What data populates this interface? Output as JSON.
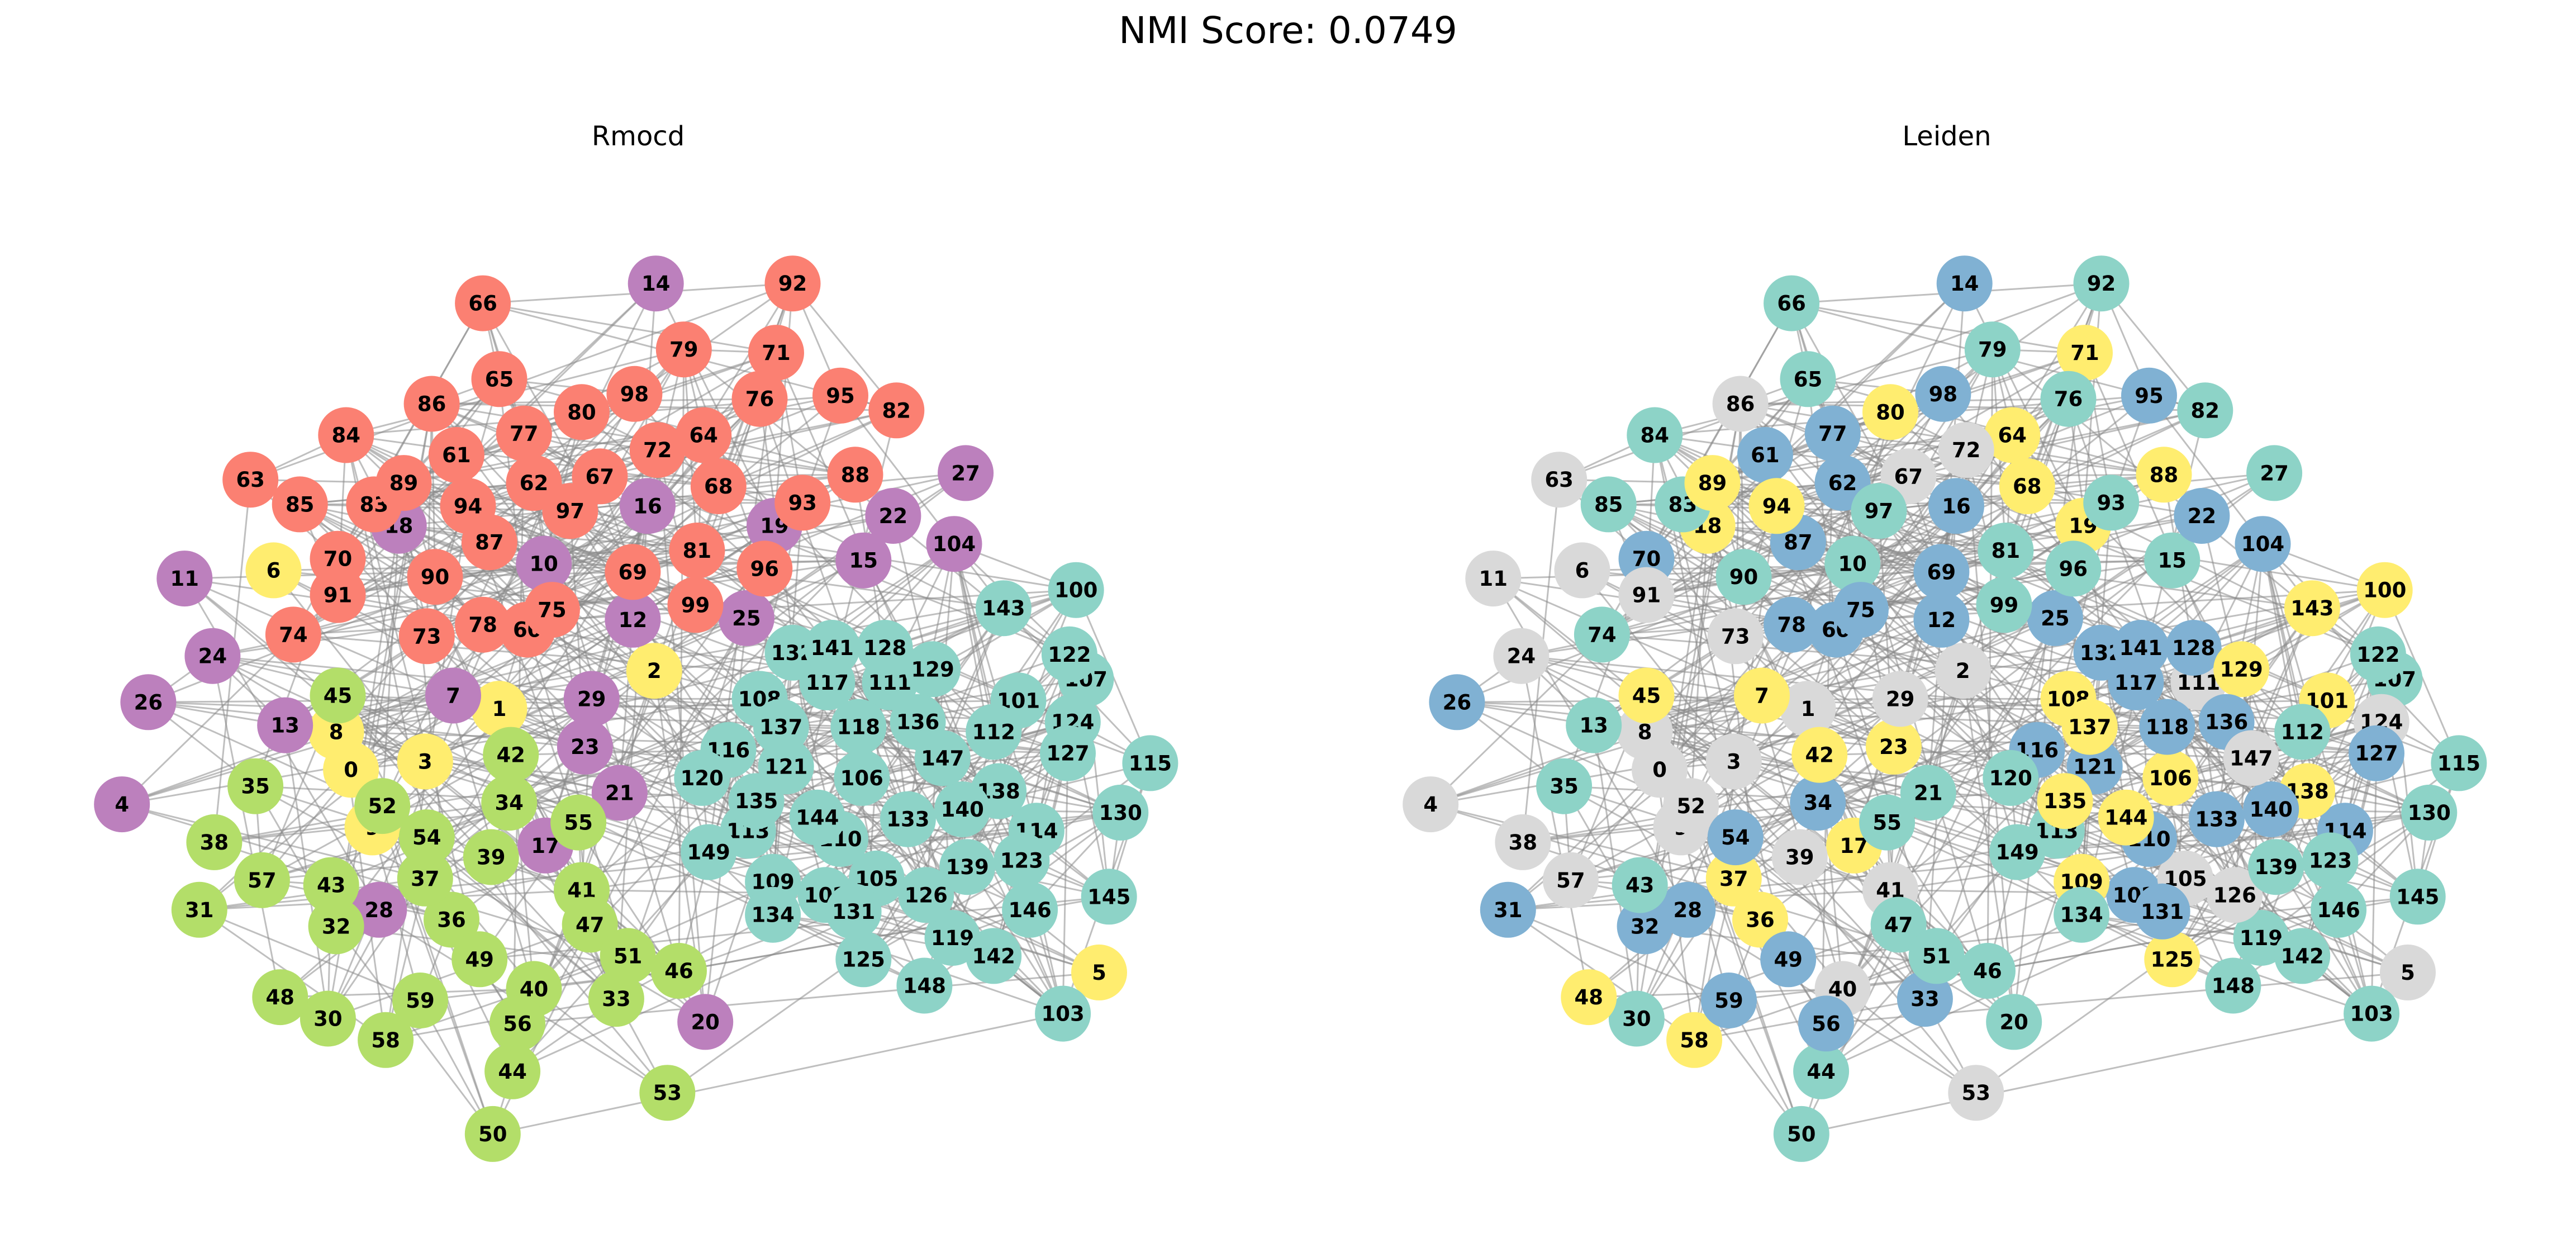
{
  "figure": {
    "suptitle": "NMI Score: 0.0749"
  },
  "panels": [
    {
      "title": "Rmocd"
    },
    {
      "title": "Leiden"
    }
  ],
  "community_colors": {
    "teal": "#8dd3c7",
    "salmon": "#fb8072",
    "purple": "#bc80bd",
    "lime": "#b3de69",
    "yellow": "#ffed6f",
    "blue": "#80b1d3",
    "gray": "#d9d9d9"
  },
  "edge_color": "#8a8a8a",
  "node_ids": [
    0,
    1,
    2,
    3,
    4,
    5,
    6,
    7,
    8,
    9,
    10,
    11,
    12,
    13,
    14,
    15,
    16,
    17,
    18,
    19,
    20,
    21,
    22,
    23,
    24,
    25,
    26,
    27,
    28,
    29,
    30,
    31,
    32,
    33,
    34,
    35,
    36,
    37,
    38,
    39,
    40,
    41,
    42,
    43,
    44,
    45,
    46,
    47,
    48,
    49,
    50,
    51,
    52,
    53,
    54,
    55,
    56,
    57,
    58,
    59,
    60,
    61,
    62,
    63,
    64,
    65,
    66,
    67,
    68,
    69,
    70,
    71,
    72,
    73,
    74,
    75,
    76,
    77,
    78,
    79,
    80,
    81,
    82,
    83,
    84,
    85,
    86,
    87,
    88,
    89,
    90,
    91,
    92,
    93,
    94,
    95,
    96,
    97,
    98,
    99,
    100,
    101,
    102,
    103,
    104,
    105,
    106,
    107,
    108,
    109,
    110,
    111,
    112,
    113,
    114,
    115,
    116,
    117,
    118,
    119,
    120,
    121,
    122,
    123,
    124,
    125,
    126,
    127,
    128,
    129,
    130,
    131,
    132,
    133,
    134,
    135,
    136,
    137,
    138,
    139,
    140,
    141,
    142,
    143,
    144,
    145,
    146,
    147,
    148,
    149
  ],
  "communities": {
    "rmocd": {
      "salmon": [
        60,
        61,
        62,
        63,
        64,
        65,
        66,
        67,
        68,
        69,
        70,
        71,
        72,
        73,
        74,
        75,
        76,
        77,
        78,
        79,
        80,
        81,
        82,
        83,
        84,
        85,
        86,
        87,
        88,
        89,
        90,
        91,
        92,
        93,
        94,
        95,
        96,
        97,
        98,
        99
      ],
      "purple": [
        4,
        7,
        10,
        11,
        12,
        13,
        14,
        15,
        16,
        17,
        18,
        19,
        20,
        21,
        22,
        23,
        24,
        25,
        26,
        27,
        28,
        29,
        104
      ],
      "lime": [
        30,
        31,
        32,
        33,
        34,
        35,
        36,
        37,
        38,
        39,
        40,
        41,
        42,
        43,
        44,
        45,
        46,
        47,
        48,
        49,
        50,
        51,
        52,
        53,
        54,
        55,
        56,
        57,
        58,
        59
      ],
      "yellow": [
        0,
        1,
        2,
        3,
        5,
        6,
        8,
        9
      ],
      "teal": [
        100,
        101,
        102,
        103,
        105,
        106,
        107,
        108,
        109,
        110,
        111,
        112,
        113,
        114,
        115,
        116,
        117,
        118,
        119,
        120,
        121,
        122,
        123,
        124,
        125,
        126,
        127,
        128,
        129,
        130,
        131,
        132,
        133,
        134,
        135,
        136,
        137,
        138,
        139,
        140,
        141,
        142,
        143,
        144,
        145,
        146,
        147,
        148,
        149
      ]
    },
    "leiden": {
      "teal": [
        10,
        13,
        15,
        20,
        21,
        27,
        30,
        35,
        43,
        44,
        46,
        47,
        50,
        51,
        55,
        65,
        66,
        74,
        76,
        79,
        81,
        82,
        83,
        84,
        85,
        90,
        92,
        93,
        96,
        97,
        99,
        103,
        107,
        112,
        113,
        115,
        119,
        120,
        122,
        123,
        130,
        134,
        139,
        142,
        145,
        146,
        148,
        149
      ],
      "blue": [
        12,
        14,
        16,
        22,
        25,
        26,
        28,
        31,
        32,
        33,
        34,
        49,
        54,
        56,
        59,
        60,
        61,
        62,
        69,
        70,
        75,
        77,
        78,
        87,
        95,
        98,
        102,
        104,
        110,
        114,
        116,
        117,
        118,
        121,
        127,
        128,
        131,
        132,
        133,
        136,
        140,
        141
      ],
      "yellow": [
        7,
        17,
        18,
        19,
        23,
        36,
        37,
        42,
        45,
        48,
        58,
        64,
        68,
        71,
        80,
        88,
        89,
        94,
        100,
        101,
        106,
        108,
        109,
        125,
        129,
        135,
        137,
        138,
        143,
        144
      ],
      "gray": [
        0,
        1,
        2,
        3,
        4,
        5,
        6,
        8,
        9,
        11,
        24,
        29,
        38,
        39,
        40,
        41,
        52,
        53,
        57,
        63,
        67,
        72,
        73,
        86,
        91,
        105,
        111,
        124,
        126,
        147
      ]
    }
  }
}
